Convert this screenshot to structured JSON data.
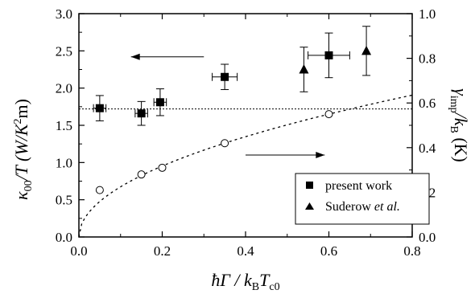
{
  "chart_data": {
    "type": "scatter",
    "xlim": [
      0.0,
      0.8
    ],
    "ylim_left": [
      0.0,
      3.0
    ],
    "ylim_right": [
      0.0,
      1.0
    ],
    "x_ticks": [
      "0.0",
      "0.2",
      "0.4",
      "0.6",
      "0.8"
    ],
    "y_left_ticks": [
      "0.0",
      "0.5",
      "1.0",
      "1.5",
      "2.0",
      "2.5",
      "3.0"
    ],
    "y_right_ticks": [
      "0.0",
      "0.2",
      "0.4",
      "0.6",
      "0.8",
      "1.0"
    ],
    "xlabel": {
      "main": "ħΓ / k",
      "sub1": "B",
      "mid": "T",
      "sub2": "c0"
    },
    "ylabel_left": {
      "kappa": "κ",
      "sub": "00",
      "rest": "/T (W/K",
      "sup": "2",
      "end": "m)"
    },
    "ylabel_right": {
      "gamma": "γ",
      "sub": "imp",
      "mid": "/k",
      "sub2": "B",
      "end": " (K)"
    },
    "series": [
      {
        "name": "present work",
        "marker": "square",
        "axis": "left",
        "points": [
          {
            "x": 0.05,
            "y": 1.73,
            "yerr": 0.17,
            "xerr": 0.015
          },
          {
            "x": 0.15,
            "y": 1.66,
            "yerr": 0.16,
            "xerr": 0.015
          },
          {
            "x": 0.195,
            "y": 1.81,
            "yerr": 0.18,
            "xerr": 0.015
          },
          {
            "x": 0.35,
            "y": 2.15,
            "yerr": 0.17,
            "xerr": 0.03
          },
          {
            "x": 0.6,
            "y": 2.44,
            "yerr": 0.3,
            "xerr": 0.05
          }
        ]
      },
      {
        "name": "Suderow et al.",
        "marker": "triangle",
        "axis": "left",
        "points": [
          {
            "x": 0.54,
            "y": 2.25,
            "yerr": 0.3
          },
          {
            "x": 0.69,
            "y": 2.5,
            "yerr": 0.33
          }
        ]
      },
      {
        "name": "",
        "marker": "open-circle",
        "axis": "right",
        "points": [
          {
            "x": 0.05,
            "y": 0.21
          },
          {
            "x": 0.15,
            "y": 0.28
          },
          {
            "x": 0.2,
            "y": 0.31
          },
          {
            "x": 0.35,
            "y": 0.42
          },
          {
            "x": 0.6,
            "y": 0.55
          }
        ]
      }
    ],
    "fit_curve": {
      "axis": "right",
      "style": "dotted",
      "form": "sqrt",
      "coef": 0.71
    },
    "reference_line": {
      "axis": "left",
      "y": 1.72,
      "style": "dotted"
    },
    "arrows": [
      {
        "direction": "left",
        "points_to": "left-axis",
        "x_from": 0.3,
        "x_to": 0.125,
        "y_left": 2.42
      },
      {
        "direction": "right",
        "points_to": "right-axis",
        "x_from": 0.4,
        "x_to": 0.59,
        "y_right": 0.367
      }
    ],
    "legend": {
      "placement": "bottom-right",
      "entries": [
        {
          "marker": "square",
          "label": "present work",
          "label_plain": "",
          "label_italic": ""
        },
        {
          "marker": "triangle",
          "label": "",
          "label_plain": "Suderow ",
          "label_italic": "et al."
        }
      ]
    }
  }
}
